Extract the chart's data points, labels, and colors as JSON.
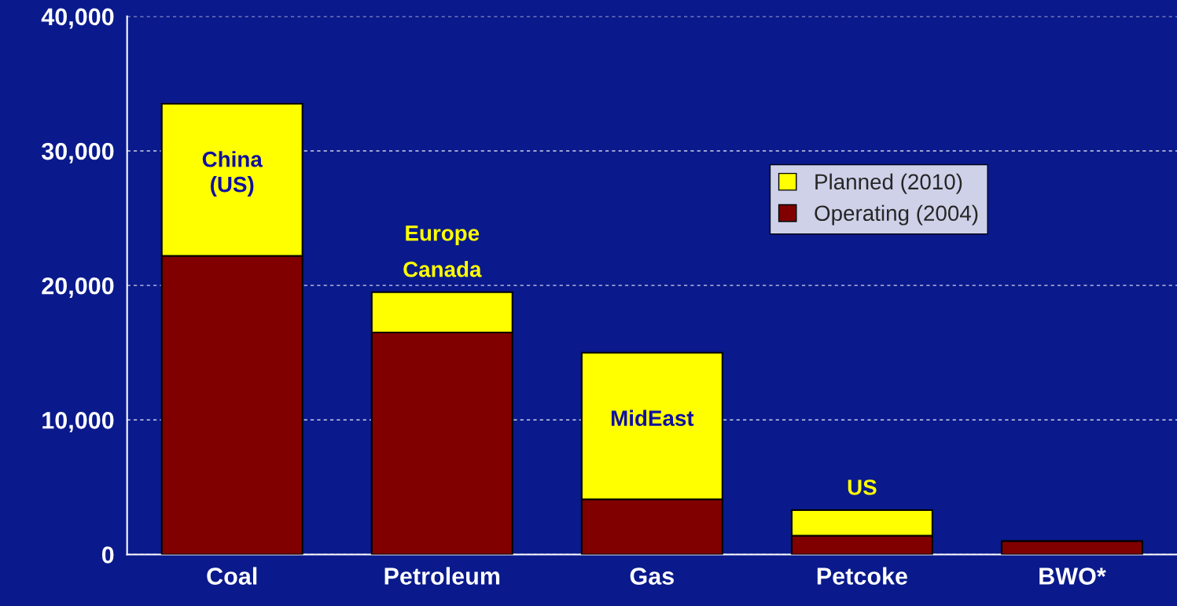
{
  "chart_data": {
    "type": "bar",
    "stacked": true,
    "categories": [
      "Coal",
      "Petroleum",
      "Gas",
      "Petcoke",
      "BWO*"
    ],
    "series": [
      {
        "name": "Operating (2004)",
        "color": "#800000",
        "values": [
          22200,
          16500,
          4100,
          1400,
          1000
        ]
      },
      {
        "name": "Planned (2010)",
        "color": "#ffff00",
        "values": [
          11300,
          3000,
          10900,
          1900,
          null
        ]
      }
    ],
    "ylim": [
      0,
      40000
    ],
    "yticks": [
      {
        "value": 0,
        "label": "0"
      },
      {
        "value": 10000,
        "label": "10,000"
      },
      {
        "value": 20000,
        "label": "20,000"
      },
      {
        "value": 30000,
        "label": "30,000"
      },
      {
        "value": 40000,
        "label": "40,000"
      }
    ],
    "grid": "y",
    "legend": "right",
    "annotations": [
      "China\n(US)",
      "Europe\nCanada",
      "MidEast",
      "US"
    ]
  }
}
